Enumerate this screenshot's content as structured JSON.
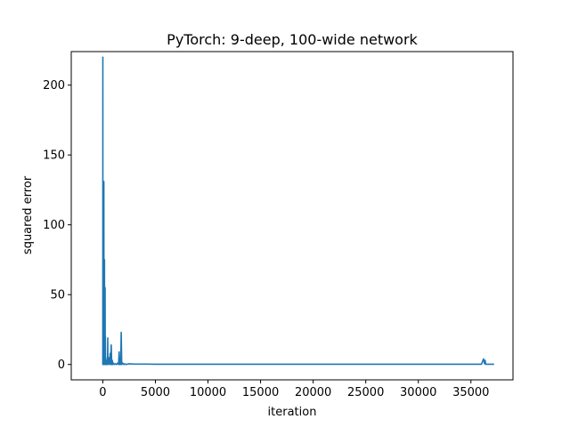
{
  "chart_data": {
    "type": "line",
    "title": "PyTorch: 9-deep, 100-wide network",
    "xlabel": "iteration",
    "ylabel": "squared error",
    "xlim": [
      -3000,
      39000
    ],
    "ylim": [
      -11,
      224
    ],
    "xticks": [
      0,
      5000,
      10000,
      15000,
      20000,
      25000,
      30000,
      35000
    ],
    "yticks": [
      0,
      50,
      100,
      150,
      200
    ],
    "grid": false,
    "series": [
      {
        "color": "#1f77b4",
        "x": [
          0,
          5,
          10,
          12,
          15,
          20,
          40,
          50,
          60,
          80,
          100,
          110,
          130,
          150,
          160,
          170,
          180,
          200,
          220,
          230,
          240,
          260,
          280,
          300,
          350,
          400,
          450,
          470,
          480,
          500,
          550,
          600,
          650,
          700,
          750,
          800,
          850,
          900,
          950,
          1000,
          1100,
          1200,
          1300,
          1400,
          1500,
          1550,
          1600,
          1650,
          1700,
          1750,
          1800,
          1900,
          2000,
          2100,
          2200,
          2500,
          3000,
          4000,
          5000,
          8000,
          10000,
          15000,
          20000,
          25000,
          30000,
          35000,
          36000,
          36200,
          36300,
          36350,
          36400,
          36500,
          37000,
          37200
        ],
        "y": [
          0,
          220,
          5,
          0,
          96,
          2,
          60,
          0,
          20,
          2,
          131,
          3,
          40,
          1,
          75,
          0,
          30,
          2,
          55,
          0,
          20,
          1,
          5,
          0,
          3,
          0,
          2,
          19,
          3,
          0,
          5,
          2,
          0,
          8,
          0,
          14,
          0,
          3,
          0,
          1,
          0,
          0.5,
          0,
          1,
          0,
          9,
          0,
          1,
          0,
          23,
          0,
          1,
          0,
          0.5,
          0,
          0.5,
          0.3,
          0.3,
          0.2,
          0.2,
          0.2,
          0.2,
          0.2,
          0.2,
          0.2,
          0.2,
          0.2,
          4,
          0.5,
          3,
          0.2,
          0.2,
          0.2,
          0.2
        ]
      }
    ]
  }
}
